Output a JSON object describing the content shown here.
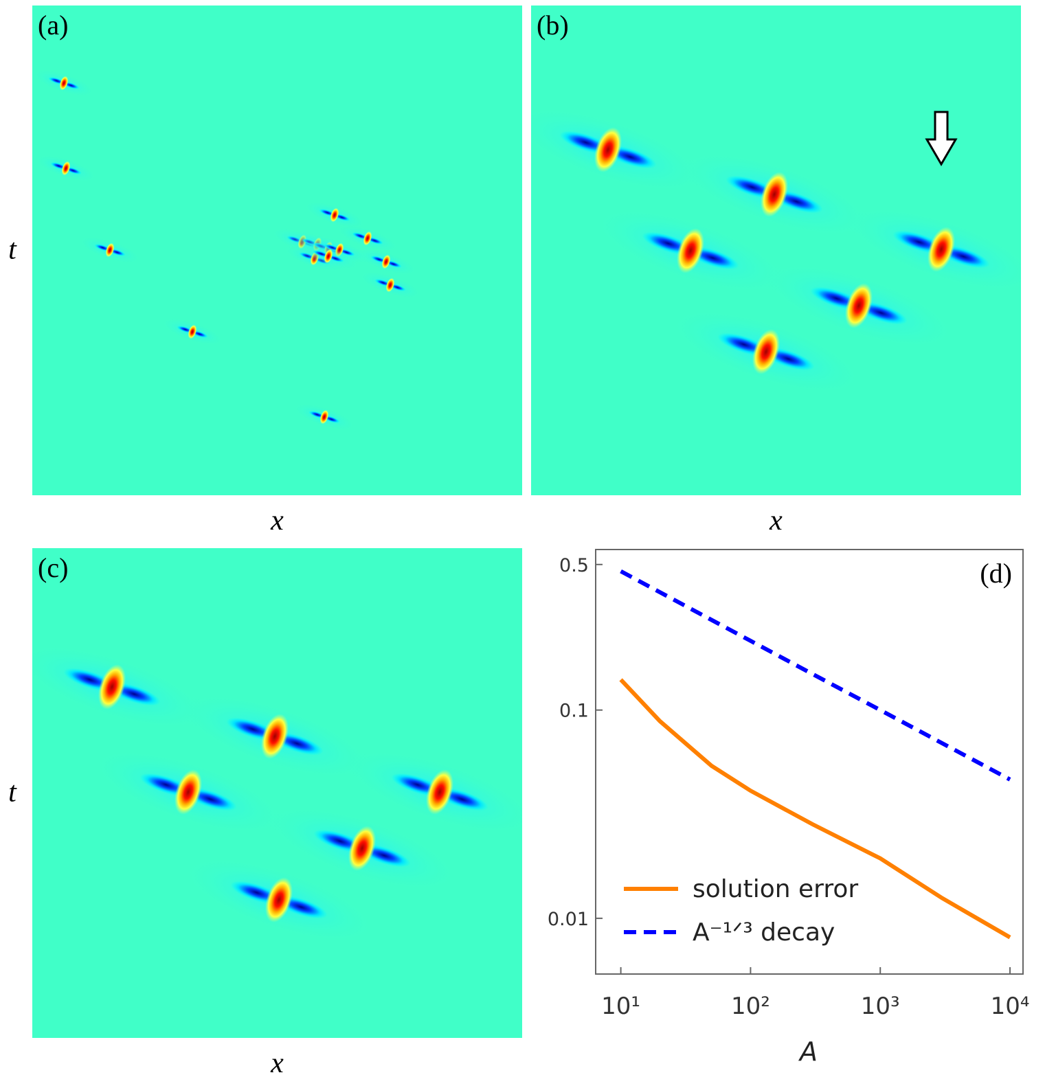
{
  "chart_data": [
    {
      "type": "heatmap",
      "label": "(a)",
      "xlabel": "x",
      "ylabel": "t"
    },
    {
      "type": "heatmap",
      "label": "(b)",
      "xlabel": "x"
    },
    {
      "type": "heatmap",
      "label": "(c)",
      "xlabel": "x",
      "ylabel": "t"
    },
    {
      "type": "line",
      "label": "(d)",
      "xlabel": "A",
      "xscale": "log",
      "yscale": "log",
      "x": [
        10,
        20,
        50,
        100,
        300,
        1000,
        3000,
        10000
      ],
      "xlim": [
        6.4,
        12600
      ],
      "ylim": [
        0.0054,
        0.59
      ],
      "xticks": [
        {
          "value": 10,
          "label": "10¹"
        },
        {
          "value": 100,
          "label": "10²"
        },
        {
          "value": 1000,
          "label": "10³"
        },
        {
          "value": 10000,
          "label": "10⁴"
        }
      ],
      "yticks": [
        0.5,
        0.1,
        0.01
      ],
      "legend": "lower left",
      "series": [
        {
          "name": "solution error",
          "color": "#ff8000",
          "dash": false,
          "values": [
            0.14,
            0.0885,
            0.054,
            0.041,
            0.0283,
            0.0194,
            0.0125,
            0.0081
          ]
        },
        {
          "name": "A⁻¹ᐟ³ decay",
          "color": "#0000ff",
          "dash": true,
          "values": [
            0.464,
            0.368,
            0.271,
            0.215,
            0.149,
            0.1,
            0.0693,
            0.0464
          ]
        }
      ]
    }
  ]
}
